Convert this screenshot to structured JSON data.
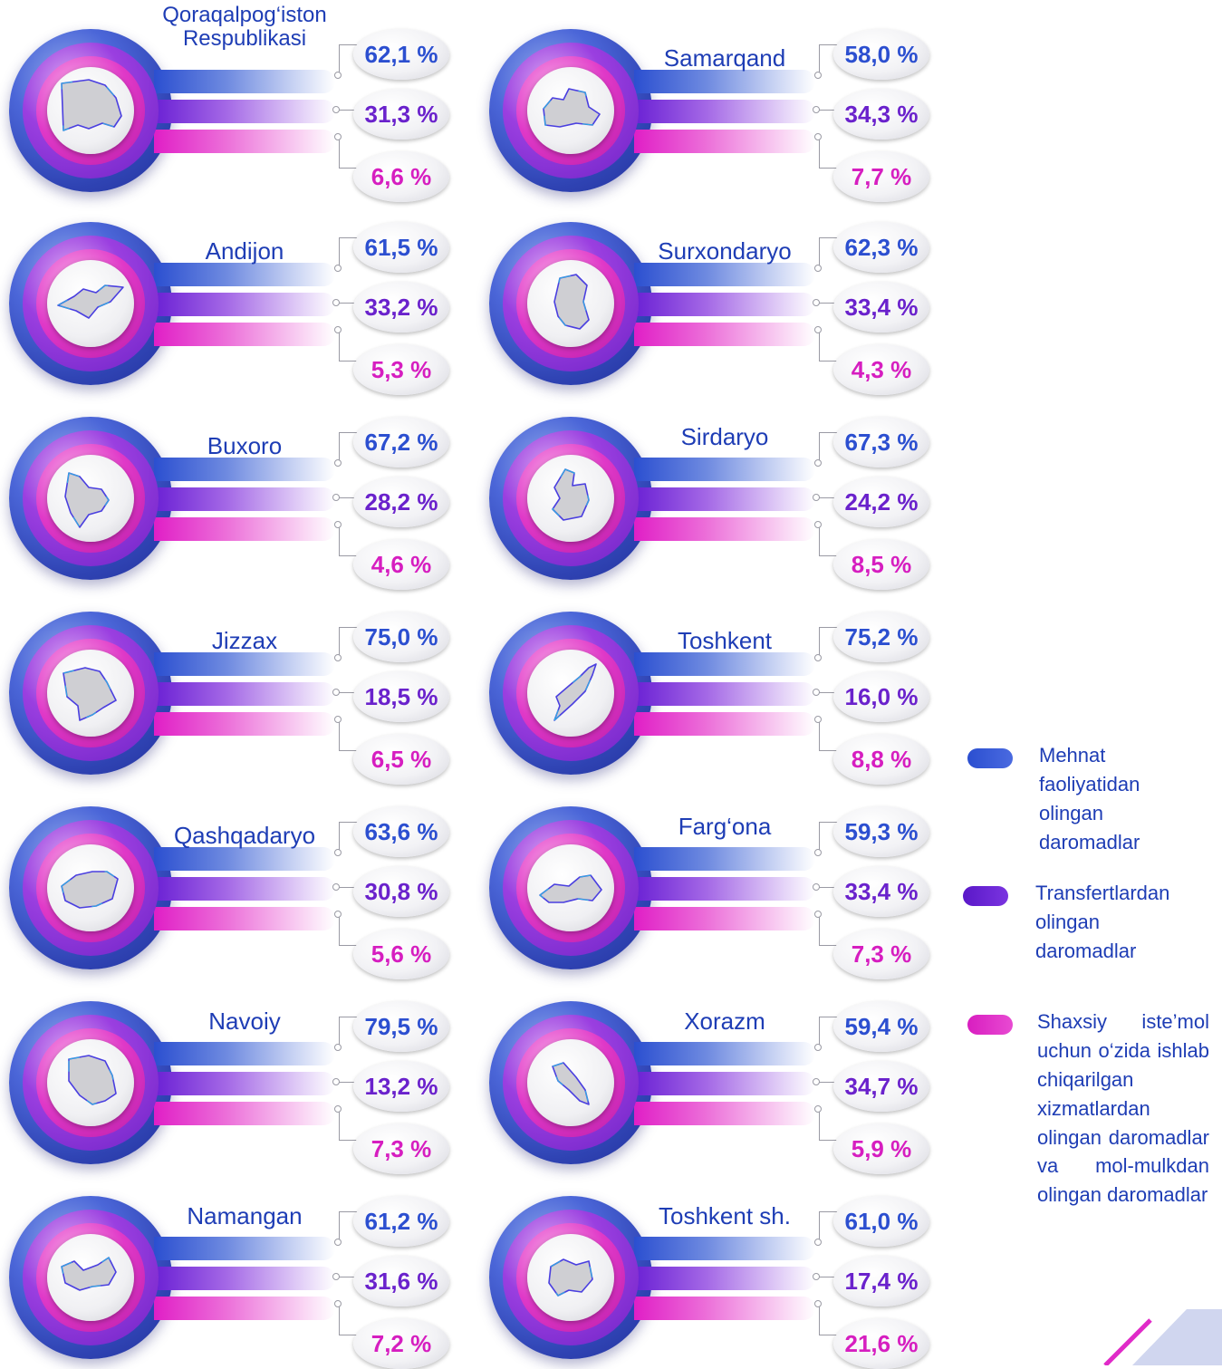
{
  "chart_data": {
    "type": "bar",
    "colors": {
      "mehnat": "#2c4fd0",
      "transfert": "#6a22cc",
      "shaxsiy": "#d61ec0"
    },
    "legend": [
      {
        "label": "Mehnat faoliyatidan olingan daromadlar",
        "color": "#2c4fd0"
      },
      {
        "label": "Transfertlardan olingan daromadlar",
        "color": "#6a22cc"
      },
      {
        "label": "Shaxsiy iste’mol uchun o‘zida ishlab chiqarilgan xizmatlardan olingan daromadlar va mol-mulkdan olingan daromadlar",
        "color": "#d61ec0"
      }
    ],
    "regions": [
      {
        "name": "Qoraqalpog‘iston Respublikasi",
        "values": [
          "62,1 %",
          "31,3 %",
          "6,6 %"
        ]
      },
      {
        "name": "Samarqand",
        "values": [
          "58,0 %",
          "34,3 %",
          "7,7 %"
        ]
      },
      {
        "name": "Andijon",
        "values": [
          "61,5 %",
          "33,2 %",
          "5,3 %"
        ]
      },
      {
        "name": "Surxondaryo",
        "values": [
          "62,3 %",
          "33,4 %",
          "4,3 %"
        ]
      },
      {
        "name": "Buxoro",
        "values": [
          "67,2 %",
          "28,2 %",
          "4,6 %"
        ]
      },
      {
        "name": "Sirdaryo",
        "values": [
          "67,3 %",
          "24,2 %",
          "8,5 %"
        ]
      },
      {
        "name": "Jizzax",
        "values": [
          "75,0 %",
          "18,5 %",
          "6,5 %"
        ]
      },
      {
        "name": "Toshkent",
        "values": [
          "75,2 %",
          "16,0 %",
          "8,8 %"
        ]
      },
      {
        "name": "Qashqadaryo",
        "values": [
          "63,6 %",
          "30,8 %",
          "5,6 %"
        ]
      },
      {
        "name": "Farg‘ona",
        "values": [
          "59,3 %",
          "33,4 %",
          "7,3 %"
        ]
      },
      {
        "name": "Navoiy",
        "values": [
          "79,5 %",
          "13,2 %",
          "7,3 %"
        ]
      },
      {
        "name": "Xorazm",
        "values": [
          "59,4 %",
          "34,7 %",
          "5,9 %"
        ]
      },
      {
        "name": "Namangan",
        "values": [
          "61,2 %",
          "31,6 %",
          "7,2 %"
        ]
      },
      {
        "name": "Toshkent sh.",
        "values": [
          "61,0 %",
          "17,4 %",
          "21,6 %"
        ]
      }
    ]
  },
  "legend": {
    "item1": "Mehnat faoliyatidan olingan daromadlar",
    "item2": "Transfertlardan olingan daromadlar",
    "item3": "Shaxsiy iste’mol uchun o‘zida ishlab chiqarilgan xizmatlardan olingan daromadlar va mol-mulkdan olingan daromadlar"
  }
}
